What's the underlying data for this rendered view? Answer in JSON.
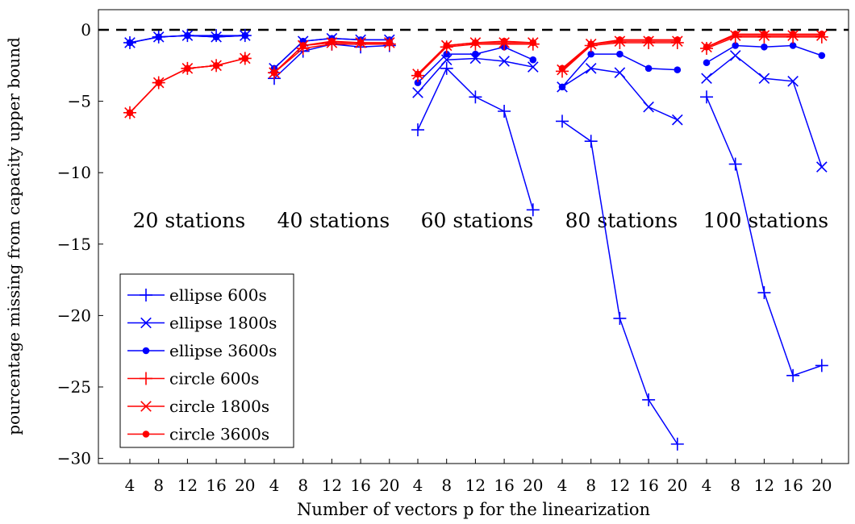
{
  "chart_data": {
    "type": "line",
    "xlabel": "Number of vectors p for the linearization",
    "ylabel": "pourcentage missing from capacity upper bound",
    "ylim": [
      -30.5,
      1.5
    ],
    "yticks": [
      0,
      -5,
      -10,
      -15,
      -20,
      -25,
      -30
    ],
    "ytick_labels": [
      "0",
      "−5",
      "−10",
      "−15",
      "−20",
      "−25",
      "−30"
    ],
    "p_values": [
      4,
      8,
      12,
      16,
      20
    ],
    "reference_line": {
      "y": 0,
      "style": "dashed",
      "color": "#000000"
    },
    "legend_placement": "lower-left",
    "grid": false,
    "groups": [
      {
        "label": "20 stations",
        "series": [
          {
            "name": "ellipse 600s",
            "values": [
              -0.9,
              -0.5,
              -0.4,
              -0.4,
              -0.4
            ]
          },
          {
            "name": "ellipse 1800s",
            "values": [
              -0.9,
              -0.5,
              -0.4,
              -0.5,
              -0.4
            ]
          },
          {
            "name": "ellipse 3600s",
            "values": [
              -0.9,
              -0.5,
              -0.4,
              -0.5,
              -0.4
            ]
          },
          {
            "name": "circle 600s",
            "values": [
              -5.8,
              -3.7,
              -2.7,
              -2.5,
              -2.0
            ]
          },
          {
            "name": "circle 1800s",
            "values": [
              -5.8,
              -3.7,
              -2.7,
              -2.5,
              -2.0
            ]
          },
          {
            "name": "circle 3600s",
            "values": [
              -5.8,
              -3.7,
              -2.7,
              -2.5,
              -2.0
            ]
          }
        ]
      },
      {
        "label": "40 stations",
        "series": [
          {
            "name": "ellipse 600s",
            "values": [
              -3.4,
              -1.5,
              -1.0,
              -1.2,
              -1.1
            ]
          },
          {
            "name": "ellipse 1800s",
            "values": [
              -2.7,
              -0.8,
              -0.6,
              -0.7,
              -0.7
            ]
          },
          {
            "name": "ellipse 3600s",
            "values": [
              -2.7,
              -0.8,
              -0.6,
              -0.7,
              -0.7
            ]
          },
          {
            "name": "circle 600s",
            "values": [
              -3.0,
              -1.3,
              -1.0,
              -1.0,
              -1.0
            ]
          },
          {
            "name": "circle 1800s",
            "values": [
              -3.0,
              -1.1,
              -0.9,
              -0.9,
              -0.9
            ]
          },
          {
            "name": "circle 3600s",
            "values": [
              -3.0,
              -1.1,
              -0.8,
              -0.9,
              -0.9
            ]
          }
        ]
      },
      {
        "label": "60 stations",
        "series": [
          {
            "name": "ellipse 600s",
            "values": [
              -7.0,
              -2.7,
              -4.7,
              -5.7,
              -12.6
            ]
          },
          {
            "name": "ellipse 1800s",
            "values": [
              -4.4,
              -2.1,
              -2.0,
              -2.2,
              -2.6
            ]
          },
          {
            "name": "ellipse 3600s",
            "values": [
              -3.7,
              -1.7,
              -1.7,
              -1.2,
              -2.1
            ]
          },
          {
            "name": "circle 600s",
            "values": [
              -3.2,
              -1.2,
              -1.0,
              -1.0,
              -1.0
            ]
          },
          {
            "name": "circle 1800s",
            "values": [
              -3.1,
              -1.1,
              -0.9,
              -0.9,
              -0.9
            ]
          },
          {
            "name": "circle 3600s",
            "values": [
              -3.1,
              -1.1,
              -0.9,
              -0.8,
              -0.9
            ]
          }
        ]
      },
      {
        "label": "80 stations",
        "series": [
          {
            "name": "ellipse 600s",
            "values": [
              -6.4,
              -7.8,
              -20.2,
              -25.9,
              -29.0
            ]
          },
          {
            "name": "ellipse 1800s",
            "values": [
              -4.0,
              -2.7,
              -3.0,
              -5.4,
              -6.3
            ]
          },
          {
            "name": "ellipse 3600s",
            "values": [
              -4.0,
              -1.7,
              -1.7,
              -2.7,
              -2.8
            ]
          },
          {
            "name": "circle 600s",
            "values": [
              -2.9,
              -1.1,
              -0.9,
              -0.9,
              -0.9
            ]
          },
          {
            "name": "circle 1800s",
            "values": [
              -2.8,
              -1.0,
              -0.8,
              -0.8,
              -0.8
            ]
          },
          {
            "name": "circle 3600s",
            "values": [
              -2.7,
              -1.0,
              -0.7,
              -0.7,
              -0.7
            ]
          }
        ]
      },
      {
        "label": "100 stations",
        "series": [
          {
            "name": "ellipse 600s",
            "values": [
              -4.7,
              -9.4,
              -18.4,
              -24.2,
              -23.5
            ]
          },
          {
            "name": "ellipse 1800s",
            "values": [
              -3.4,
              -1.8,
              -3.4,
              -3.6,
              -9.6
            ]
          },
          {
            "name": "ellipse 3600s",
            "values": [
              -2.3,
              -1.1,
              -1.2,
              -1.1,
              -1.8
            ]
          },
          {
            "name": "circle 600s",
            "values": [
              -1.3,
              -0.5,
              -0.5,
              -0.5,
              -0.5
            ]
          },
          {
            "name": "circle 1800s",
            "values": [
              -1.2,
              -0.4,
              -0.4,
              -0.4,
              -0.4
            ]
          },
          {
            "name": "circle 3600s",
            "values": [
              -1.2,
              -0.3,
              -0.3,
              -0.3,
              -0.3
            ]
          }
        ]
      }
    ],
    "legend": [
      {
        "name": "ellipse 600s",
        "color": "#0000ff",
        "marker": "plus"
      },
      {
        "name": "ellipse 1800s",
        "color": "#0000ff",
        "marker": "cross"
      },
      {
        "name": "ellipse 3600s",
        "color": "#0000ff",
        "marker": "dot"
      },
      {
        "name": "circle 600s",
        "color": "#ff0000",
        "marker": "plus"
      },
      {
        "name": "circle 1800s",
        "color": "#ff0000",
        "marker": "cross"
      },
      {
        "name": "circle 3600s",
        "color": "#ff0000",
        "marker": "dot"
      }
    ]
  }
}
